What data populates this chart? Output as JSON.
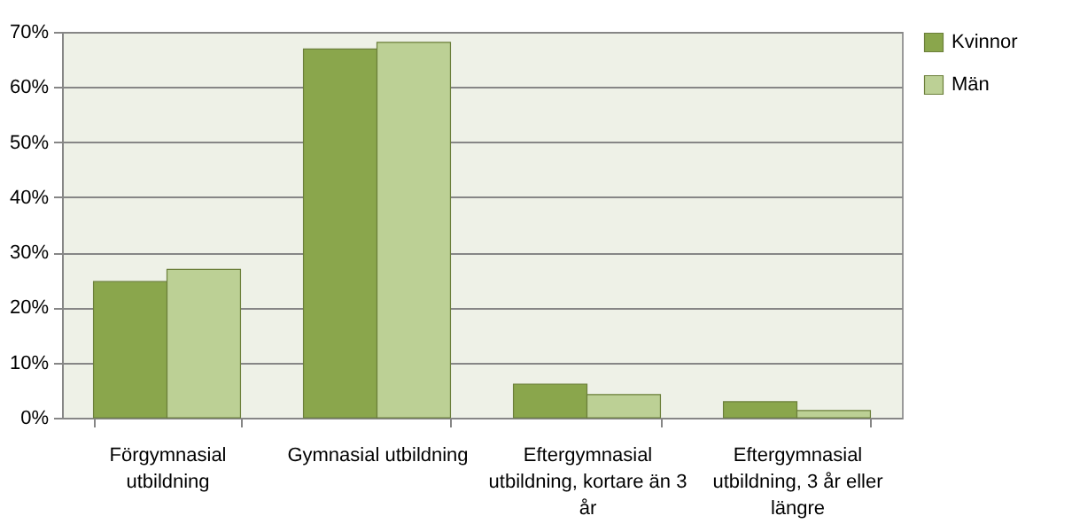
{
  "chart_data": {
    "type": "bar",
    "categories": [
      "Förgymnasial utbildning",
      "Gymnasial utbildning",
      "Eftergymnasial utbildning, kortare än 3 år",
      "Eftergymnasial utbildning, 3 år eller längre"
    ],
    "series": [
      {
        "name": "Kvinnor",
        "color": "#8aa64c",
        "values": [
          24.7,
          66.9,
          6.1,
          2.9
        ]
      },
      {
        "name": "Män",
        "color": "#bcd095",
        "values": [
          26.9,
          68.1,
          4.2,
          1.3
        ]
      }
    ],
    "ylim": [
      0,
      70
    ],
    "yticks": [
      {
        "value": 0,
        "label": "0%"
      },
      {
        "value": 10,
        "label": "10%"
      },
      {
        "value": 20,
        "label": "20%"
      },
      {
        "value": 30,
        "label": "30%"
      },
      {
        "value": 40,
        "label": "40%"
      },
      {
        "value": 50,
        "label": "50%"
      },
      {
        "value": 60,
        "label": "60%"
      },
      {
        "value": 70,
        "label": "70%"
      }
    ],
    "grid": "y",
    "legend": "right"
  }
}
